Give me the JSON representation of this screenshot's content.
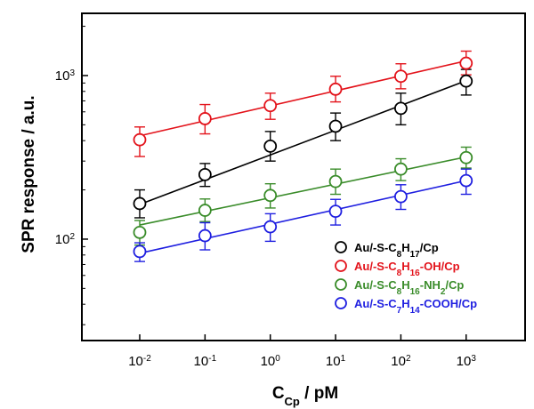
{
  "chart_data": {
    "type": "scatter",
    "x_scale": "log",
    "y_scale": "log",
    "xlabel": "C",
    "xlabel_sub": "Cp",
    "xlabel_unit": " / pM",
    "ylabel": "SPR response / a.u.",
    "xlim": [
      0.0013,
      8000
    ],
    "ylim": [
      24,
      2400
    ],
    "x_ticks": [
      {
        "value": 0.01,
        "base": "10",
        "exp": "-2"
      },
      {
        "value": 0.1,
        "base": "10",
        "exp": "-1"
      },
      {
        "value": 1,
        "base": "10",
        "exp": "0"
      },
      {
        "value": 10,
        "base": "10",
        "exp": "1"
      },
      {
        "value": 100,
        "base": "10",
        "exp": "2"
      },
      {
        "value": 1000,
        "base": "10",
        "exp": "3"
      }
    ],
    "y_ticks": [
      {
        "value": 100,
        "base": "10",
        "exp": "2"
      },
      {
        "value": 1000,
        "base": "10",
        "exp": "3"
      }
    ],
    "x": [
      0.01,
      0.1,
      1,
      10,
      100,
      1000
    ],
    "series": [
      {
        "name": "Au/-S-C8H17/Cp",
        "legend_parts": [
          [
            "Au/-S-C",
            ""
          ],
          [
            "8",
            "sub"
          ],
          [
            "H",
            ""
          ],
          [
            "17",
            "sub"
          ],
          [
            "/Cp",
            ""
          ]
        ],
        "color": "#000000",
        "values": [
          165,
          248,
          370,
          490,
          630,
          925
        ],
        "err_low": [
          135,
          210,
          300,
          400,
          500,
          760
        ],
        "err_high": [
          200,
          290,
          455,
          590,
          780,
          1090
        ],
        "fit": [
          {
            "x": 0.01,
            "y": 163
          },
          {
            "x": 1000,
            "y": 930
          }
        ]
      },
      {
        "name": "Au/-S-C8H16-OH/Cp",
        "legend_parts": [
          [
            "Au/-S-C",
            ""
          ],
          [
            "8",
            "sub"
          ],
          [
            "H",
            ""
          ],
          [
            "16",
            "sub"
          ],
          [
            "-OH/Cp",
            ""
          ]
        ],
        "color": "#e3131b",
        "values": [
          405,
          545,
          655,
          825,
          990,
          1190
        ],
        "err_low": [
          320,
          440,
          540,
          690,
          830,
          1010
        ],
        "err_high": [
          485,
          665,
          780,
          990,
          1180,
          1410
        ],
        "fit": [
          {
            "x": 0.01,
            "y": 428
          },
          {
            "x": 1000,
            "y": 1230
          }
        ]
      },
      {
        "name": "Au/-S-C8H16-NH2/Cp",
        "legend_parts": [
          [
            "Au/-S-C",
            ""
          ],
          [
            "8",
            "sub"
          ],
          [
            "H",
            ""
          ],
          [
            "16",
            "sub"
          ],
          [
            "-NH",
            ""
          ],
          [
            "2",
            "sub"
          ],
          [
            "/Cp",
            ""
          ]
        ],
        "color": "#3a8c2a",
        "values": [
          110,
          150,
          185,
          225,
          268,
          315
        ],
        "err_low": [
          92,
          128,
          155,
          188,
          228,
          272
        ],
        "err_high": [
          130,
          176,
          218,
          268,
          310,
          365
        ],
        "fit": [
          {
            "x": 0.01,
            "y": 122
          },
          {
            "x": 1000,
            "y": 318
          }
        ]
      },
      {
        "name": "Au/-S-C7H14-COOH/Cp",
        "legend_parts": [
          [
            "Au/-S-C",
            ""
          ],
          [
            "7",
            "sub"
          ],
          [
            "H",
            ""
          ],
          [
            "14",
            "sub"
          ],
          [
            "-COOH/Cp",
            ""
          ]
        ],
        "color": "#1f1fe0",
        "values": [
          84,
          105,
          119,
          148,
          182,
          228
        ],
        "err_low": [
          73,
          86,
          97,
          122,
          152,
          188
        ],
        "err_high": [
          95,
          126,
          143,
          175,
          215,
          268
        ],
        "fit": [
          {
            "x": 0.01,
            "y": 82
          },
          {
            "x": 1000,
            "y": 228
          }
        ]
      }
    ],
    "legend_position": "lower-right",
    "grid": false
  }
}
